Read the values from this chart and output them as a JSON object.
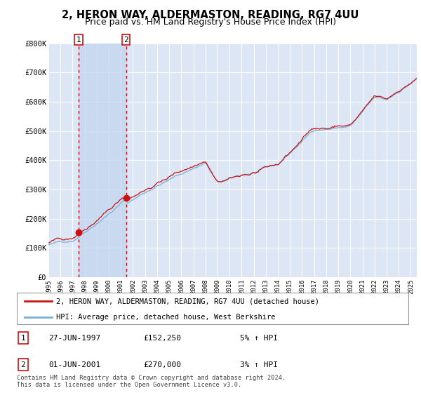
{
  "title": "2, HERON WAY, ALDERMASTON, READING, RG7 4UU",
  "subtitle": "Price paid vs. HM Land Registry's House Price Index (HPI)",
  "title_fontsize": 10.5,
  "subtitle_fontsize": 9,
  "background_color": "#ffffff",
  "plot_bg_color": "#dce6f5",
  "shade_color": "#c8d8ee",
  "ylabel": "",
  "ylim": [
    0,
    800000
  ],
  "yticks": [
    0,
    100000,
    200000,
    300000,
    400000,
    500000,
    600000,
    700000,
    800000
  ],
  "ytick_labels": [
    "£0",
    "£100K",
    "£200K",
    "£300K",
    "£400K",
    "£500K",
    "£600K",
    "£700K",
    "£800K"
  ],
  "legend_line1": "2, HERON WAY, ALDERMASTON, READING, RG7 4UU (detached house)",
  "legend_line2": "HPI: Average price, detached house, West Berkshire",
  "sale1_label": "1",
  "sale1_date": "27-JUN-1997",
  "sale1_price": "£152,250",
  "sale1_hpi": "5% ↑ HPI",
  "sale1_year": 1997.5,
  "sale1_value": 152250,
  "sale2_label": "2",
  "sale2_date": "01-JUN-2001",
  "sale2_price": "£270,000",
  "sale2_hpi": "3% ↑ HPI",
  "sale2_year": 2001.42,
  "sale2_value": 270000,
  "footer": "Contains HM Land Registry data © Crown copyright and database right 2024.\nThis data is licensed under the Open Government Licence v3.0.",
  "hpi_color": "#7bafd4",
  "price_color": "#cc1111",
  "grid_color": "#ffffff",
  "xlim_left": 1995.0,
  "xlim_right": 2025.5
}
